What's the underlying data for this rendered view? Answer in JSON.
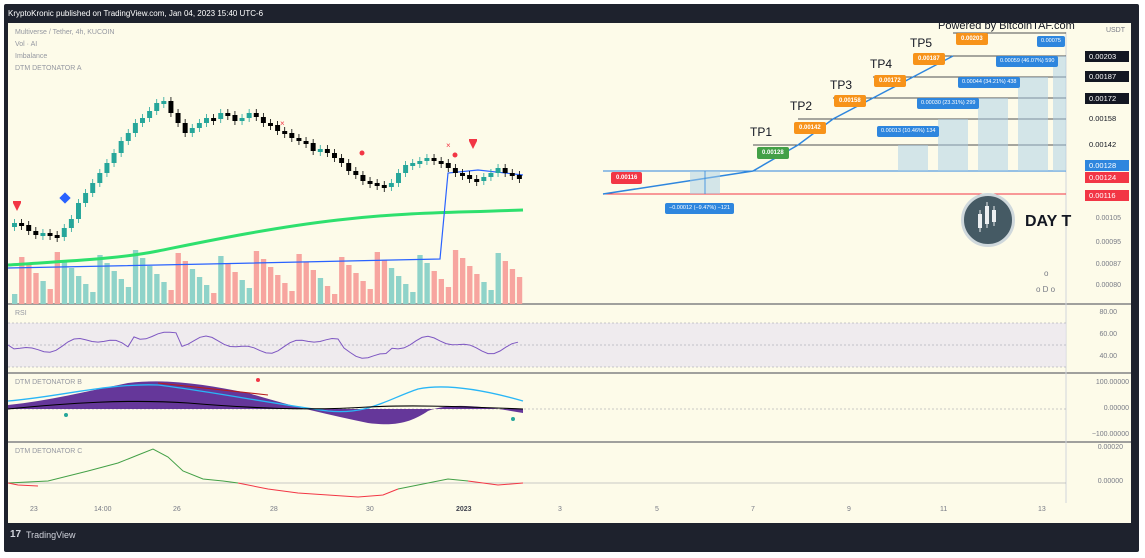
{
  "header": {
    "publish_line": "KryptoKronic published on TradingView.com, Jan 04, 2023 15:40 UTC-6"
  },
  "legend": {
    "symbol": "Multiverse / Tether, 4h, KUCOIN",
    "vol": "Vol · AI",
    "imbalance": "Imbalance",
    "dtm_a": "DTM DETONATOR A",
    "rsi": "RSI",
    "dtm_b": "DTM DETONATOR B",
    "dtm_c": "DTM DETONATOR C"
  },
  "watermark": "Powered by BitcoinTAF.com",
  "brand_text": "DAY T",
  "currency": "USDT",
  "price_axis": {
    "prices": [
      "0.00203",
      "0.00187",
      "0.00172",
      "0.00158",
      "0.00142",
      "0.00128",
      "0.00124",
      "0.00116"
    ],
    "plain": [
      "0.00105",
      "0.00095",
      "0.00087",
      "0.00080"
    ],
    "overlay_o": "o",
    "overlay_odo": "o D o"
  },
  "rsi_axis": [
    "80.00",
    "60.00",
    "40.00"
  ],
  "dtm_b_axis": [
    "100.00000",
    "0.00000",
    "−100.00000"
  ],
  "dtm_c_axis": [
    "0.00020",
    "0.00000"
  ],
  "targets": {
    "tp1": {
      "label": "TP1",
      "value": "0.00128"
    },
    "tp2": {
      "label": "TP2",
      "value": "0.00142"
    },
    "tp3": {
      "label": "TP3",
      "value": "0.00158"
    },
    "tp4": {
      "label": "TP4",
      "value": "0.00172"
    },
    "tp5": {
      "label": "TP5",
      "value": "0.00203"
    },
    "tp5_mid": "0.00187",
    "entry": "0.00116"
  },
  "info_boxes": {
    "stop": "−0.00012 (−9.47%) −121",
    "b1": "0.00013 (10.46%) 134",
    "b2": "0.00030 (23.31%) 299",
    "b3": "0.00044 (34.21%) 438",
    "b4": "0.00059 (46.07%) 590",
    "b5": "0.00075"
  },
  "time_axis": [
    "23",
    "14:00",
    "26",
    "28",
    "30",
    "2023",
    "3",
    "5",
    "7",
    "9",
    "11",
    "13"
  ],
  "footer": {
    "logo": "17",
    "brand": "TradingView"
  },
  "colors": {
    "bull": "#26a69a",
    "bear": "#000000",
    "ma_green": "#2ee06e",
    "tp_orange": "#f7931a",
    "tp_green": "#43a047",
    "entry_red": "#f23645",
    "info_blue": "#2e86de"
  }
}
